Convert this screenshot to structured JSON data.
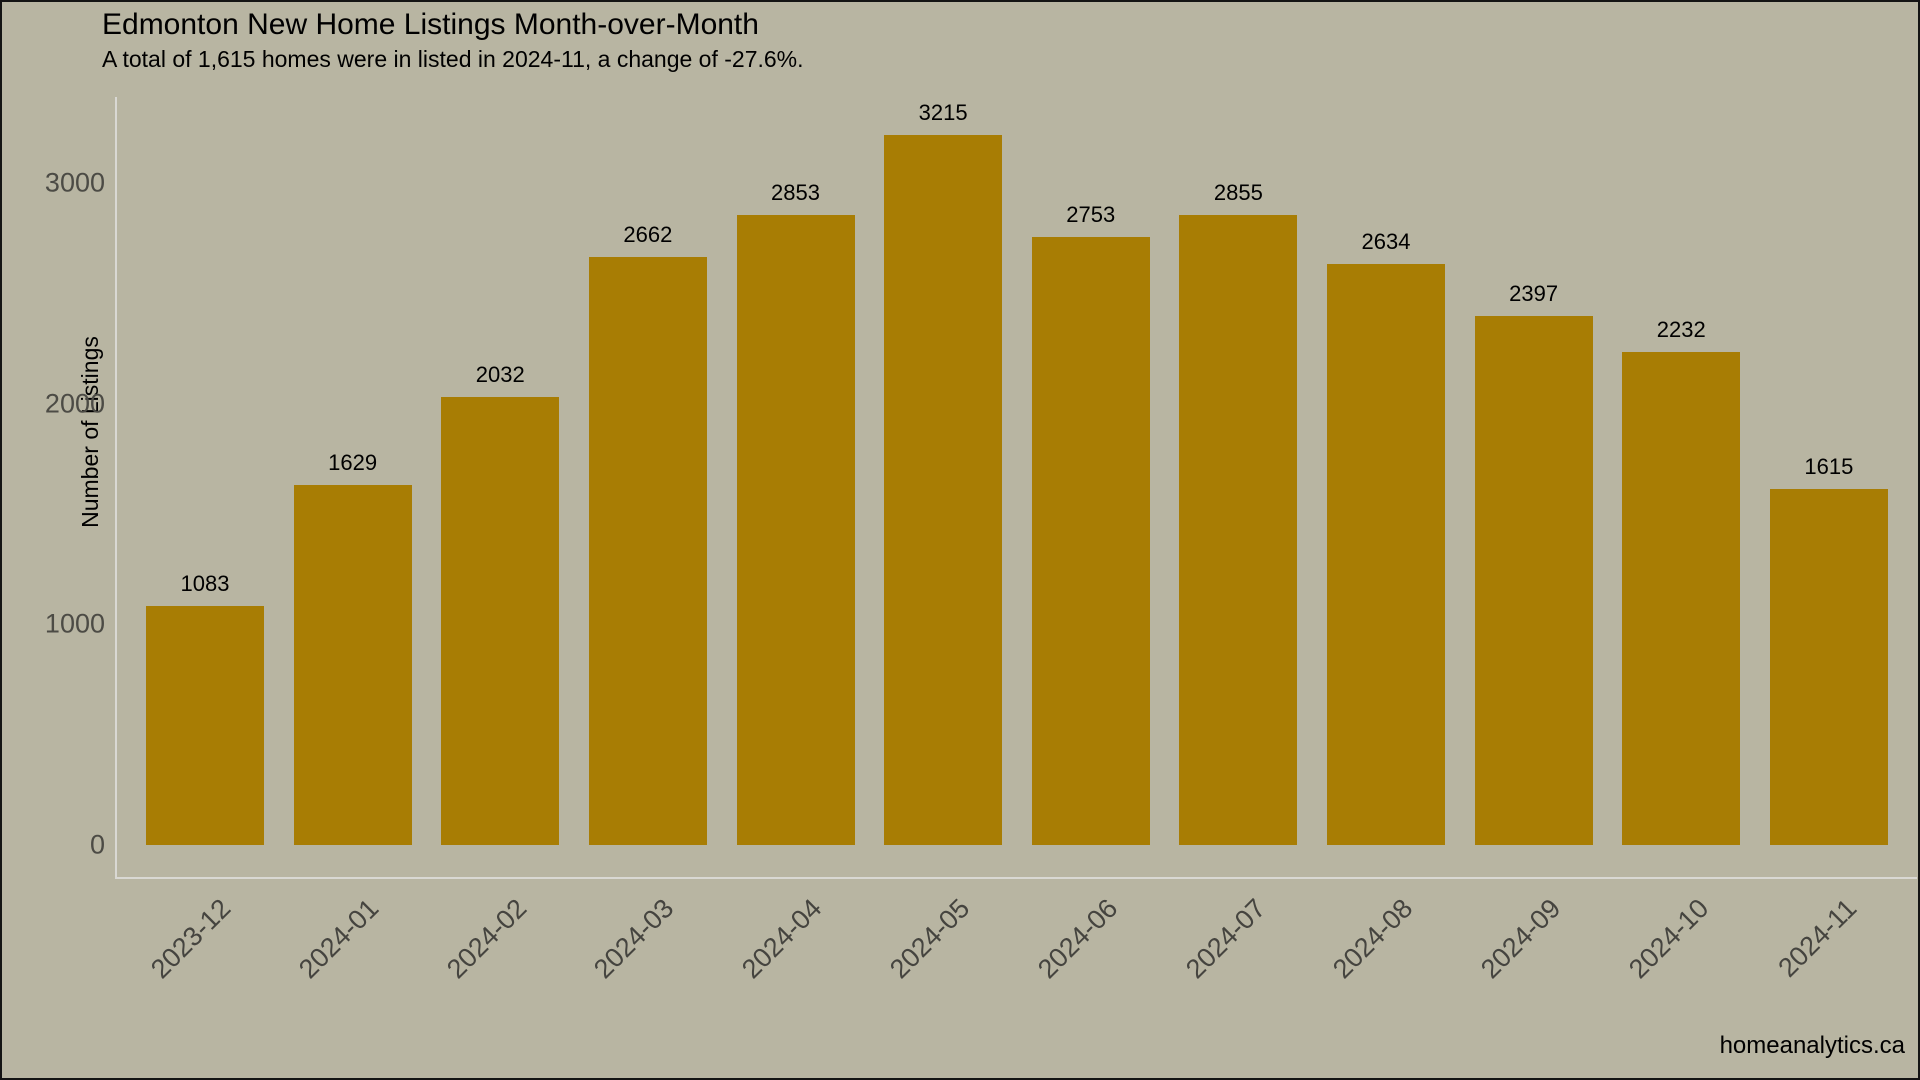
{
  "watermark": "homeanalytics.ca",
  "chart_data": {
    "type": "bar",
    "title": "Edmonton New Home Listings Month-over-Month",
    "subtitle": "A total of 1,615 homes were in listed in 2024-11, a change of -27.6%.",
    "categories": [
      "2023-12",
      "2024-01",
      "2024-02",
      "2024-03",
      "2024-04",
      "2024-05",
      "2024-06",
      "2024-07",
      "2024-08",
      "2024-09",
      "2024-10",
      "2024-11"
    ],
    "values": [
      1083,
      1629,
      2032,
      2662,
      2853,
      3215,
      2753,
      2855,
      2634,
      2397,
      2232,
      1615
    ],
    "bar_labels_shown": true,
    "xlabel": "",
    "ylabel": "Number of Listings",
    "yticks": [
      0,
      1000,
      2000,
      3000
    ],
    "ylim": [
      0,
      3215
    ],
    "grid": false,
    "legend": "none",
    "x_tick_rotation_deg": 45,
    "colors": {
      "bar": "#a87d04",
      "background": "#b8b5a2",
      "axis_line": "#d9d8d3",
      "tick_text": "#4c4b45",
      "text": "#000000"
    }
  }
}
